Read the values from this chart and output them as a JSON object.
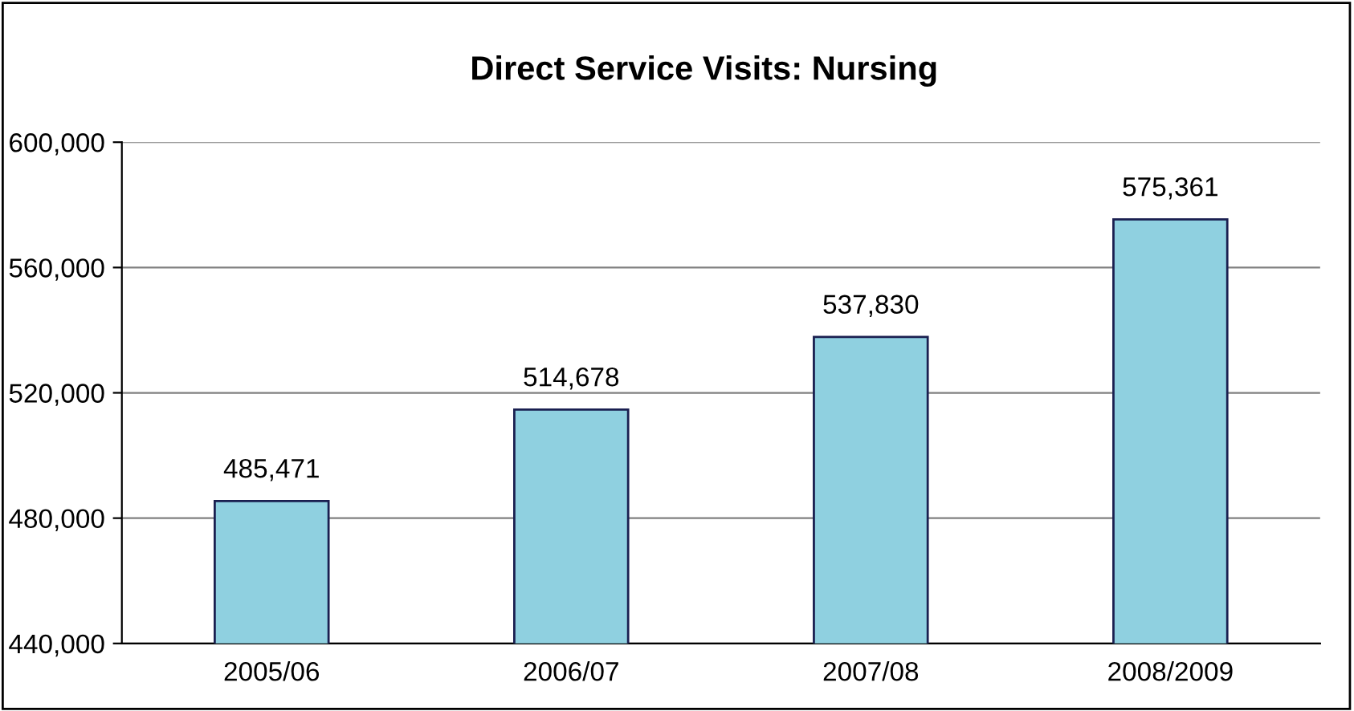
{
  "chart_data": {
    "type": "bar",
    "title": "Direct Service Visits: Nursing",
    "categories": [
      "2005/06",
      "2006/07",
      "2007/08",
      "2008/2009"
    ],
    "values": [
      485471,
      514678,
      537830,
      575361
    ],
    "color": "#8fd0e0",
    "ylim": [
      440000,
      600000
    ],
    "yticks": [
      {
        "value": 440000,
        "label": "440,000"
      },
      {
        "value": 480000,
        "label": "480,000"
      },
      {
        "value": 520000,
        "label": "520,000"
      },
      {
        "value": 560000,
        "label": "560,000"
      },
      {
        "value": 600000,
        "label": "600,000"
      }
    ],
    "value_labels": [
      "485,471",
      "514,678",
      "537,830",
      "575,361"
    ],
    "grid": "y",
    "legend": false
  }
}
